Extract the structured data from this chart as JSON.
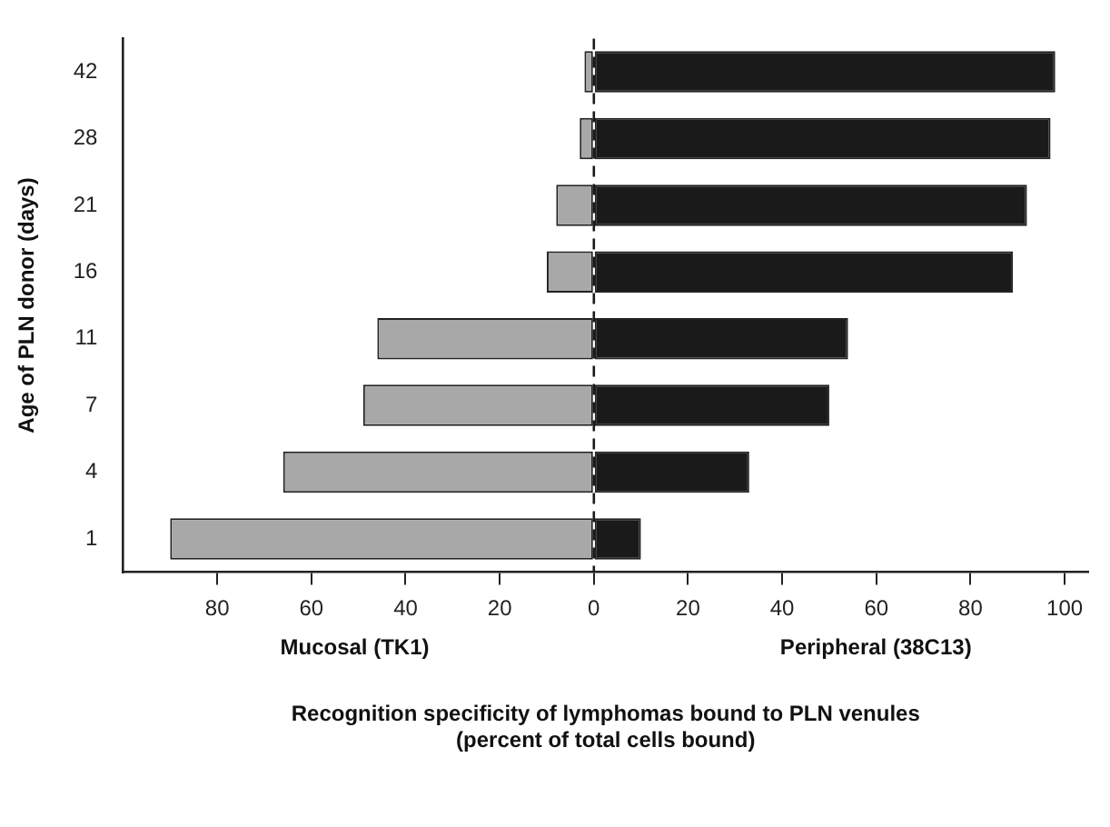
{
  "chart_data": {
    "type": "bar",
    "orientation": "horizontal",
    "stacked": true,
    "xlabel": "Recognition specificity of lymphomas bound to PLN venules\n(percent of total cells bound)",
    "ylabel": "Age of PLN donor (days)",
    "categories": [
      "42",
      "28",
      "21",
      "16",
      "11",
      "7",
      "4",
      "1"
    ],
    "series": [
      {
        "color": "#a8a8a8",
        "values": [
          -2,
          -3,
          -8,
          -10,
          -46,
          -49,
          -66,
          -90
        ]
      },
      {
        "color": "#1a1a1a",
        "values": [
          98,
          97,
          92,
          89,
          54,
          50,
          33,
          10
        ]
      }
    ],
    "xlim": [
      -100,
      105
    ],
    "xticks": [
      {
        "value": -80,
        "label": "80"
      },
      {
        "value": -60,
        "label": "60"
      },
      {
        "value": -40,
        "label": "40"
      },
      {
        "value": -20,
        "label": "20"
      },
      0,
      20,
      40,
      60,
      80,
      100
    ],
    "ref_lines": [
      {
        "axis": "x",
        "value": 0,
        "line_style": "dashed",
        "color": "#1a1a1a"
      }
    ],
    "annotations": [
      "Mucosal (TK1)",
      "Peripheral (38C13)"
    ],
    "grid": false,
    "legend": false
  }
}
